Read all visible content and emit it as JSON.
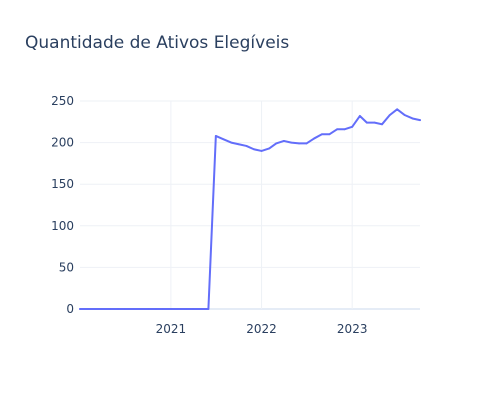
{
  "chart_data": {
    "type": "line",
    "title": "Quantidade de Ativos Elegíveis",
    "xlabel": "",
    "ylabel": "",
    "x_range": [
      "2020-01-01",
      "2023-10-01"
    ],
    "ylim": [
      0,
      250
    ],
    "y_ticks": [
      0,
      50,
      100,
      150,
      200,
      250
    ],
    "x_ticks": [
      {
        "date": "2021-01-01",
        "label": "2021"
      },
      {
        "date": "2022-01-01",
        "label": "2022"
      },
      {
        "date": "2023-01-01",
        "label": "2023"
      }
    ],
    "grid": true,
    "legend": "none",
    "series": [
      {
        "color": "#636efa",
        "x": [
          "2020-01-01",
          "2020-02-01",
          "2020-03-01",
          "2020-04-01",
          "2020-05-01",
          "2020-06-01",
          "2020-07-01",
          "2020-08-01",
          "2020-09-01",
          "2020-10-01",
          "2020-11-01",
          "2020-12-01",
          "2021-01-01",
          "2021-02-01",
          "2021-03-01",
          "2021-04-01",
          "2021-05-01",
          "2021-06-01",
          "2021-07-01",
          "2021-08-01",
          "2021-09-01",
          "2021-10-01",
          "2021-11-01",
          "2021-12-01",
          "2022-01-01",
          "2022-02-01",
          "2022-03-01",
          "2022-04-01",
          "2022-05-01",
          "2022-06-01",
          "2022-07-01",
          "2022-08-01",
          "2022-09-01",
          "2022-10-01",
          "2022-11-01",
          "2022-12-01",
          "2023-01-01",
          "2023-02-01",
          "2023-03-01",
          "2023-04-01",
          "2023-05-01",
          "2023-06-01",
          "2023-07-01",
          "2023-08-01",
          "2023-09-01",
          "2023-10-01"
        ],
        "y": [
          0,
          0,
          0,
          0,
          0,
          0,
          0,
          0,
          0,
          0,
          0,
          0,
          0,
          0,
          0,
          0,
          0,
          0,
          208,
          204,
          200,
          198,
          196,
          192,
          190,
          193,
          199,
          202,
          200,
          199,
          199,
          205,
          210,
          210,
          216,
          216,
          219,
          232,
          224,
          224,
          222,
          233,
          240,
          233,
          229,
          227
        ]
      }
    ]
  }
}
